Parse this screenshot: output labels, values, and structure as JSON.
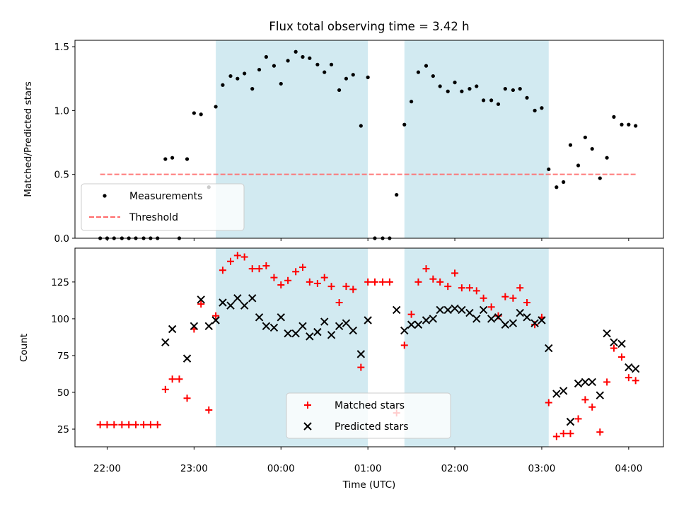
{
  "chart_data": {
    "type": "scatter",
    "title": "Flux total observing time = 3.42 h",
    "xlabel": "Time (UTC)",
    "x_unit": "hours (UTC; values past 24 are after midnight of the next day)",
    "xlim": [
      21.63,
      28.4
    ],
    "xticks": [
      {
        "value": 22,
        "label": "22:00"
      },
      {
        "value": 23,
        "label": "23:00"
      },
      {
        "value": 24,
        "label": "00:00"
      },
      {
        "value": 25,
        "label": "01:00"
      },
      {
        "value": 26,
        "label": "02:00"
      },
      {
        "value": 27,
        "label": "03:00"
      },
      {
        "value": 28,
        "label": "04:00"
      }
    ],
    "shaded_intervals": {
      "color": "#add8e6",
      "ranges": [
        [
          23.25,
          25.0
        ],
        [
          25.42,
          27.08
        ]
      ]
    },
    "panels": [
      {
        "name": "ratio",
        "ylabel": "Matched/Predicted stars",
        "ylim": [
          0,
          1.55
        ],
        "yticks": [
          0.0,
          0.5,
          1.0,
          1.5
        ],
        "ytick_labels": [
          "0.0",
          "0.5",
          "1.0",
          "1.5"
        ],
        "legend": {
          "position": "lower-left"
        },
        "threshold": {
          "name": "Threshold",
          "value": 0.5,
          "x_range": [
            21.92,
            28.1
          ],
          "color": "#ff6b6b",
          "style": "dashed"
        },
        "series": [
          {
            "name": "Measurements",
            "marker": "dot",
            "color": "#000000",
            "points": [
              [
                21.92,
                0.0
              ],
              [
                22.0,
                0.0
              ],
              [
                22.08,
                0.0
              ],
              [
                22.17,
                0.0
              ],
              [
                22.25,
                0.0
              ],
              [
                22.33,
                0.0
              ],
              [
                22.42,
                0.0
              ],
              [
                22.5,
                0.0
              ],
              [
                22.58,
                0.0
              ],
              [
                22.67,
                0.62
              ],
              [
                22.75,
                0.63
              ],
              [
                22.83,
                0.0
              ],
              [
                22.92,
                0.62
              ],
              [
                23.0,
                0.98
              ],
              [
                23.08,
                0.97
              ],
              [
                23.17,
                0.4
              ],
              [
                23.25,
                1.03
              ],
              [
                23.33,
                1.2
              ],
              [
                23.42,
                1.27
              ],
              [
                23.5,
                1.25
              ],
              [
                23.58,
                1.29
              ],
              [
                23.67,
                1.17
              ],
              [
                23.75,
                1.32
              ],
              [
                23.83,
                1.42
              ],
              [
                23.92,
                1.35
              ],
              [
                24.0,
                1.21
              ],
              [
                24.08,
                1.39
              ],
              [
                24.17,
                1.46
              ],
              [
                24.25,
                1.42
              ],
              [
                24.33,
                1.41
              ],
              [
                24.42,
                1.36
              ],
              [
                24.5,
                1.3
              ],
              [
                24.58,
                1.36
              ],
              [
                24.67,
                1.16
              ],
              [
                24.75,
                1.25
              ],
              [
                24.83,
                1.28
              ],
              [
                24.92,
                0.88
              ],
              [
                25.0,
                1.26
              ],
              [
                25.08,
                0.0
              ],
              [
                25.17,
                0.0
              ],
              [
                25.25,
                0.0
              ],
              [
                25.33,
                0.34
              ],
              [
                25.42,
                0.89
              ],
              [
                25.5,
                1.07
              ],
              [
                25.58,
                1.3
              ],
              [
                25.67,
                1.35
              ],
              [
                25.75,
                1.27
              ],
              [
                25.83,
                1.19
              ],
              [
                25.92,
                1.15
              ],
              [
                26.0,
                1.22
              ],
              [
                26.08,
                1.15
              ],
              [
                26.17,
                1.17
              ],
              [
                26.25,
                1.19
              ],
              [
                26.33,
                1.08
              ],
              [
                26.42,
                1.08
              ],
              [
                26.5,
                1.05
              ],
              [
                26.58,
                1.17
              ],
              [
                26.67,
                1.16
              ],
              [
                26.75,
                1.17
              ],
              [
                26.83,
                1.1
              ],
              [
                26.92,
                1.0
              ],
              [
                27.0,
                1.02
              ],
              [
                27.08,
                0.54
              ],
              [
                27.17,
                0.4
              ],
              [
                27.25,
                0.44
              ],
              [
                27.33,
                0.73
              ],
              [
                27.42,
                0.57
              ],
              [
                27.5,
                0.79
              ],
              [
                27.58,
                0.7
              ],
              [
                27.67,
                0.47
              ],
              [
                27.75,
                0.63
              ],
              [
                27.83,
                0.95
              ],
              [
                27.92,
                0.89
              ],
              [
                28.0,
                0.89
              ],
              [
                28.08,
                0.88
              ]
            ]
          }
        ]
      },
      {
        "name": "counts",
        "ylabel": "Count",
        "ylim": [
          13,
          148
        ],
        "yticks": [
          25,
          50,
          75,
          100,
          125
        ],
        "ytick_labels": [
          "25",
          "50",
          "75",
          "100",
          "125"
        ],
        "legend": {
          "position": "lower-center"
        },
        "series": [
          {
            "name": "Matched stars",
            "marker": "plus",
            "color": "#ff0000",
            "points": [
              [
                21.92,
                28
              ],
              [
                22.0,
                28
              ],
              [
                22.08,
                28
              ],
              [
                22.17,
                28
              ],
              [
                22.25,
                28
              ],
              [
                22.33,
                28
              ],
              [
                22.42,
                28
              ],
              [
                22.5,
                28
              ],
              [
                22.58,
                28
              ],
              [
                22.67,
                52
              ],
              [
                22.75,
                59
              ],
              [
                22.83,
                59
              ],
              [
                22.92,
                46
              ],
              [
                23.0,
                93
              ],
              [
                23.08,
                110
              ],
              [
                23.17,
                38
              ],
              [
                23.25,
                102
              ],
              [
                23.33,
                133
              ],
              [
                23.42,
                139
              ],
              [
                23.5,
                143
              ],
              [
                23.58,
                142
              ],
              [
                23.67,
                134
              ],
              [
                23.75,
                134
              ],
              [
                23.83,
                136
              ],
              [
                23.92,
                128
              ],
              [
                24.0,
                123
              ],
              [
                24.08,
                126
              ],
              [
                24.17,
                132
              ],
              [
                24.25,
                135
              ],
              [
                24.33,
                125
              ],
              [
                24.42,
                124
              ],
              [
                24.5,
                128
              ],
              [
                24.58,
                122
              ],
              [
                24.67,
                111
              ],
              [
                24.75,
                122
              ],
              [
                24.83,
                120
              ],
              [
                24.92,
                67
              ],
              [
                25.0,
                125
              ],
              [
                25.08,
                125
              ],
              [
                25.17,
                125
              ],
              [
                25.25,
                125
              ],
              [
                25.33,
                36
              ],
              [
                25.42,
                82
              ],
              [
                25.5,
                103
              ],
              [
                25.58,
                125
              ],
              [
                25.67,
                134
              ],
              [
                25.75,
                127
              ],
              [
                25.83,
                125
              ],
              [
                25.92,
                122
              ],
              [
                26.0,
                131
              ],
              [
                26.08,
                121
              ],
              [
                26.17,
                121
              ],
              [
                26.25,
                119
              ],
              [
                26.33,
                114
              ],
              [
                26.42,
                108
              ],
              [
                26.5,
                102
              ],
              [
                26.58,
                115
              ],
              [
                26.67,
                114
              ],
              [
                26.75,
                121
              ],
              [
                26.83,
                111
              ],
              [
                26.92,
                96
              ],
              [
                27.0,
                101
              ],
              [
                27.08,
                43
              ],
              [
                27.17,
                20
              ],
              [
                27.25,
                22
              ],
              [
                27.33,
                22
              ],
              [
                27.42,
                32
              ],
              [
                27.5,
                45
              ],
              [
                27.58,
                40
              ],
              [
                27.67,
                23
              ],
              [
                27.75,
                57
              ],
              [
                27.83,
                80
              ],
              [
                27.92,
                74
              ],
              [
                28.0,
                60
              ],
              [
                28.08,
                58
              ]
            ]
          },
          {
            "name": "Predicted stars",
            "marker": "x",
            "color": "#000000",
            "points": [
              [
                22.67,
                84
              ],
              [
                22.75,
                93
              ],
              [
                22.92,
                73
              ],
              [
                23.0,
                95
              ],
              [
                23.08,
                113
              ],
              [
                23.17,
                95
              ],
              [
                23.25,
                99
              ],
              [
                23.33,
                111
              ],
              [
                23.42,
                109
              ],
              [
                23.5,
                114
              ],
              [
                23.58,
                109
              ],
              [
                23.67,
                114
              ],
              [
                23.75,
                101
              ],
              [
                23.83,
                95
              ],
              [
                23.92,
                94
              ],
              [
                24.0,
                101
              ],
              [
                24.08,
                90
              ],
              [
                24.17,
                90
              ],
              [
                24.25,
                95
              ],
              [
                24.33,
                88
              ],
              [
                24.42,
                91
              ],
              [
                24.5,
                98
              ],
              [
                24.58,
                89
              ],
              [
                24.67,
                95
              ],
              [
                24.75,
                97
              ],
              [
                24.83,
                92
              ],
              [
                24.92,
                76
              ],
              [
                25.0,
                99
              ],
              [
                25.33,
                106
              ],
              [
                25.42,
                92
              ],
              [
                25.5,
                96
              ],
              [
                25.58,
                96
              ],
              [
                25.67,
                99
              ],
              [
                25.75,
                100
              ],
              [
                25.83,
                106
              ],
              [
                25.92,
                106
              ],
              [
                26.0,
                107
              ],
              [
                26.08,
                106
              ],
              [
                26.17,
                104
              ],
              [
                26.25,
                100
              ],
              [
                26.33,
                106
              ],
              [
                26.42,
                100
              ],
              [
                26.5,
                101
              ],
              [
                26.58,
                96
              ],
              [
                26.67,
                97
              ],
              [
                26.75,
                104
              ],
              [
                26.83,
                101
              ],
              [
                26.92,
                97
              ],
              [
                27.0,
                99
              ],
              [
                27.08,
                80
              ],
              [
                27.17,
                49
              ],
              [
                27.25,
                51
              ],
              [
                27.33,
                30
              ],
              [
                27.42,
                56
              ],
              [
                27.5,
                57
              ],
              [
                27.58,
                57
              ],
              [
                27.67,
                48
              ],
              [
                27.75,
                90
              ],
              [
                27.83,
                84
              ],
              [
                27.92,
                83
              ],
              [
                28.0,
                67
              ],
              [
                28.08,
                66
              ]
            ]
          }
        ]
      }
    ]
  }
}
